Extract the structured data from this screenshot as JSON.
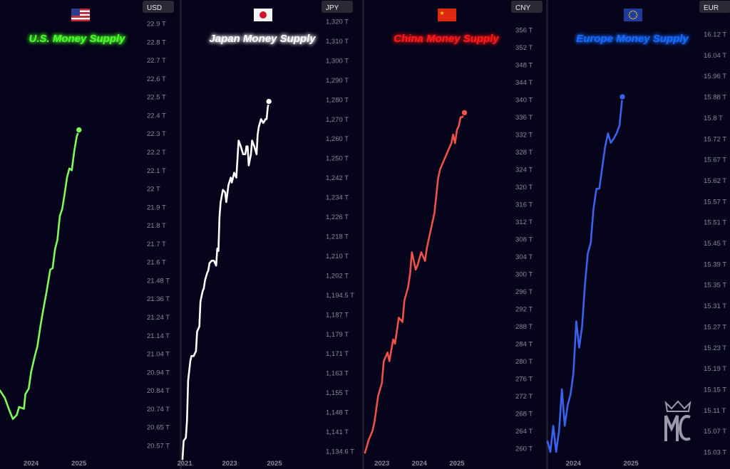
{
  "colors": {
    "background": "#05041a",
    "divider": "#1c1c2c",
    "axis_text": "#8a8a9a",
    "badge_bg": "#2a2a34",
    "badge_text": "#e8e8ee"
  },
  "chart_data": [
    {
      "type": "line",
      "title": "U.S. Money Supply",
      "flag": "flag-us-icon",
      "currency": "USD",
      "color": "#7dfc5c",
      "title_color": "#4cff2a",
      "y_ticks": [
        "22.9 T",
        "22.8 T",
        "22.7 T",
        "22.6 T",
        "22.5 T",
        "22.4 T",
        "22.3 T",
        "22.2 T",
        "22.1 T",
        "22 T",
        "21.9 T",
        "21.8 T",
        "21.7 T",
        "21.6 T",
        "21.48 T",
        "21.36 T",
        "21.24 T",
        "21.14 T",
        "21.04 T",
        "20.94 T",
        "20.84 T",
        "20.74 T",
        "20.65 T",
        "20.57 T"
      ],
      "x_ticks": [
        {
          "label": "2024",
          "t": 2024.0
        },
        {
          "label": "2025",
          "t": 2025.0
        }
      ],
      "x_range": [
        2023.35,
        2026.3
      ],
      "points": [
        [
          2023.35,
          20.84
        ],
        [
          2023.45,
          20.8
        ],
        [
          2023.55,
          20.73
        ],
        [
          2023.62,
          20.69
        ],
        [
          2023.7,
          20.71
        ],
        [
          2023.75,
          20.75
        ],
        [
          2023.85,
          20.74
        ],
        [
          2023.88,
          20.82
        ],
        [
          2023.95,
          20.85
        ],
        [
          2024.0,
          20.94
        ],
        [
          2024.08,
          21.03
        ],
        [
          2024.13,
          21.08
        ],
        [
          2024.2,
          21.2
        ],
        [
          2024.25,
          21.28
        ],
        [
          2024.32,
          21.4
        ],
        [
          2024.4,
          21.55
        ],
        [
          2024.45,
          21.56
        ],
        [
          2024.5,
          21.67
        ],
        [
          2024.55,
          21.72
        ],
        [
          2024.6,
          21.85
        ],
        [
          2024.65,
          21.89
        ],
        [
          2024.7,
          21.97
        ],
        [
          2024.75,
          22.06
        ],
        [
          2024.8,
          22.11
        ],
        [
          2024.85,
          22.1
        ],
        [
          2024.9,
          22.2
        ],
        [
          2024.95,
          22.28
        ],
        [
          2025.0,
          22.32
        ]
      ]
    },
    {
      "type": "line",
      "title": "Japan Money Supply",
      "flag": "flag-japan-icon",
      "currency": "JPY",
      "color": "#ffffff",
      "title_color": "#ffffff",
      "y_ticks": [
        "1,320 T",
        "1,310 T",
        "1,300 T",
        "1,290 T",
        "1,280 T",
        "1,270 T",
        "1,260 T",
        "1,250 T",
        "1,242 T",
        "1,234 T",
        "1,226 T",
        "1,218 T",
        "1,210 T",
        "1,202 T",
        "1,194.5 T",
        "1,187 T",
        "1,179 T",
        "1,171 T",
        "1,163 T",
        "1,155 T",
        "1,148 T",
        "1,141 T",
        "1,134.6 T"
      ],
      "x_ticks": [
        {
          "label": "2021",
          "t": 2021.0
        },
        {
          "label": "2023",
          "t": 2023.0
        },
        {
          "label": "2025",
          "t": 2025.0
        }
      ],
      "x_range": [
        2020.9,
        2027.0
      ],
      "points": [
        [
          2020.9,
          1132
        ],
        [
          2020.95,
          1138
        ],
        [
          2021.05,
          1139
        ],
        [
          2021.1,
          1145
        ],
        [
          2021.15,
          1160
        ],
        [
          2021.25,
          1168
        ],
        [
          2021.3,
          1170
        ],
        [
          2021.4,
          1170
        ],
        [
          2021.5,
          1172
        ],
        [
          2021.55,
          1180
        ],
        [
          2021.65,
          1182
        ],
        [
          2021.7,
          1192
        ],
        [
          2021.8,
          1196
        ],
        [
          2021.85,
          1197
        ],
        [
          2021.9,
          1200
        ],
        [
          2022.0,
          1203
        ],
        [
          2022.05,
          1204
        ],
        [
          2022.1,
          1207
        ],
        [
          2022.2,
          1208
        ],
        [
          2022.3,
          1208
        ],
        [
          2022.4,
          1206
        ],
        [
          2022.45,
          1213
        ],
        [
          2022.5,
          1212
        ],
        [
          2022.55,
          1226
        ],
        [
          2022.6,
          1232
        ],
        [
          2022.7,
          1237
        ],
        [
          2022.8,
          1236
        ],
        [
          2022.85,
          1232
        ],
        [
          2022.95,
          1239
        ],
        [
          2023.05,
          1242
        ],
        [
          2023.1,
          1240
        ],
        [
          2023.2,
          1244
        ],
        [
          2023.3,
          1242
        ],
        [
          2023.4,
          1259
        ],
        [
          2023.5,
          1256
        ],
        [
          2023.6,
          1252
        ],
        [
          2023.7,
          1252
        ],
        [
          2023.75,
          1256
        ],
        [
          2023.8,
          1256
        ],
        [
          2023.85,
          1247
        ],
        [
          2023.95,
          1252
        ],
        [
          2024.0,
          1259
        ],
        [
          2024.1,
          1256
        ],
        [
          2024.2,
          1252
        ],
        [
          2024.25,
          1262
        ],
        [
          2024.3,
          1266
        ],
        [
          2024.4,
          1270
        ],
        [
          2024.5,
          1268
        ],
        [
          2024.6,
          1270
        ],
        [
          2024.65,
          1270
        ],
        [
          2024.7,
          1276
        ],
        [
          2024.75,
          1279
        ]
      ]
    },
    {
      "type": "line",
      "title": "China Money Supply",
      "flag": "flag-china-icon",
      "currency": "CNY",
      "color": "#ee5248",
      "title_color": "#ff1a1a",
      "y_ticks": [
        "356 T",
        "352 T",
        "348 T",
        "344 T",
        "340 T",
        "336 T",
        "332 T",
        "328 T",
        "324 T",
        "320 T",
        "316 T",
        "312 T",
        "308 T",
        "304 T",
        "300 T",
        "296 T",
        "292 T",
        "288 T",
        "284 T",
        "280 T",
        "276 T",
        "272 T",
        "268 T",
        "264 T",
        "260 T"
      ],
      "x_ticks": [
        {
          "label": "2023",
          "t": 2023.0
        },
        {
          "label": "2024",
          "t": 2024.0
        },
        {
          "label": "2025",
          "t": 2025.0
        }
      ],
      "x_range": [
        2022.55,
        2026.35
      ],
      "points": [
        [
          2022.55,
          259
        ],
        [
          2022.65,
          262
        ],
        [
          2022.75,
          264
        ],
        [
          2022.8,
          266
        ],
        [
          2022.9,
          272
        ],
        [
          2023.0,
          275
        ],
        [
          2023.05,
          280
        ],
        [
          2023.15,
          282
        ],
        [
          2023.2,
          280
        ],
        [
          2023.3,
          285
        ],
        [
          2023.35,
          284
        ],
        [
          2023.45,
          290
        ],
        [
          2023.55,
          289
        ],
        [
          2023.6,
          294
        ],
        [
          2023.7,
          297
        ],
        [
          2023.75,
          300
        ],
        [
          2023.8,
          305
        ],
        [
          2023.9,
          301
        ],
        [
          2023.95,
          302
        ],
        [
          2024.05,
          305
        ],
        [
          2024.15,
          303
        ],
        [
          2024.2,
          306
        ],
        [
          2024.3,
          310
        ],
        [
          2024.4,
          314
        ],
        [
          2024.5,
          322
        ],
        [
          2024.55,
          324
        ],
        [
          2024.65,
          326
        ],
        [
          2024.75,
          328
        ],
        [
          2024.85,
          330
        ],
        [
          2024.9,
          332
        ],
        [
          2024.95,
          330
        ],
        [
          2025.0,
          333
        ],
        [
          2025.05,
          334
        ],
        [
          2025.1,
          336
        ],
        [
          2025.15,
          336
        ],
        [
          2025.2,
          337
        ]
      ]
    },
    {
      "type": "line",
      "title": "Europe Money Supply",
      "flag": "flag-eu-icon",
      "currency": "EUR",
      "color": "#3a62ee",
      "title_color": "#1e6bff",
      "y_ticks": [
        "16.12 T",
        "16.04 T",
        "15.96 T",
        "15.88 T",
        "15.8 T",
        "15.72 T",
        "15.67 T",
        "15.62 T",
        "15.57 T",
        "15.51 T",
        "15.45 T",
        "15.39 T",
        "15.35 T",
        "15.31 T",
        "15.27 T",
        "15.23 T",
        "15.19 T",
        "15.15 T",
        "15.11 T",
        "15.07 T",
        "15.03 T"
      ],
      "x_ticks": [
        {
          "label": "2024",
          "t": 2024.0
        },
        {
          "label": "2025",
          "t": 2025.0
        }
      ],
      "x_range": [
        2023.55,
        2026.15
      ],
      "points": [
        [
          2023.55,
          15.05
        ],
        [
          2023.6,
          15.03
        ],
        [
          2023.65,
          15.08
        ],
        [
          2023.7,
          15.03
        ],
        [
          2023.75,
          15.07
        ],
        [
          2023.8,
          15.15
        ],
        [
          2023.85,
          15.08
        ],
        [
          2023.9,
          15.12
        ],
        [
          2023.95,
          15.14
        ],
        [
          2024.0,
          15.18
        ],
        [
          2024.05,
          15.28
        ],
        [
          2024.1,
          15.23
        ],
        [
          2024.15,
          15.27
        ],
        [
          2024.2,
          15.35
        ],
        [
          2024.25,
          15.42
        ],
        [
          2024.3,
          15.45
        ],
        [
          2024.35,
          15.55
        ],
        [
          2024.4,
          15.6
        ],
        [
          2024.45,
          15.6
        ],
        [
          2024.5,
          15.65
        ],
        [
          2024.55,
          15.7
        ],
        [
          2024.6,
          15.74
        ],
        [
          2024.65,
          15.71
        ],
        [
          2024.7,
          15.72
        ],
        [
          2024.75,
          15.74
        ],
        [
          2024.8,
          15.77
        ],
        [
          2024.85,
          15.88
        ]
      ]
    }
  ]
}
